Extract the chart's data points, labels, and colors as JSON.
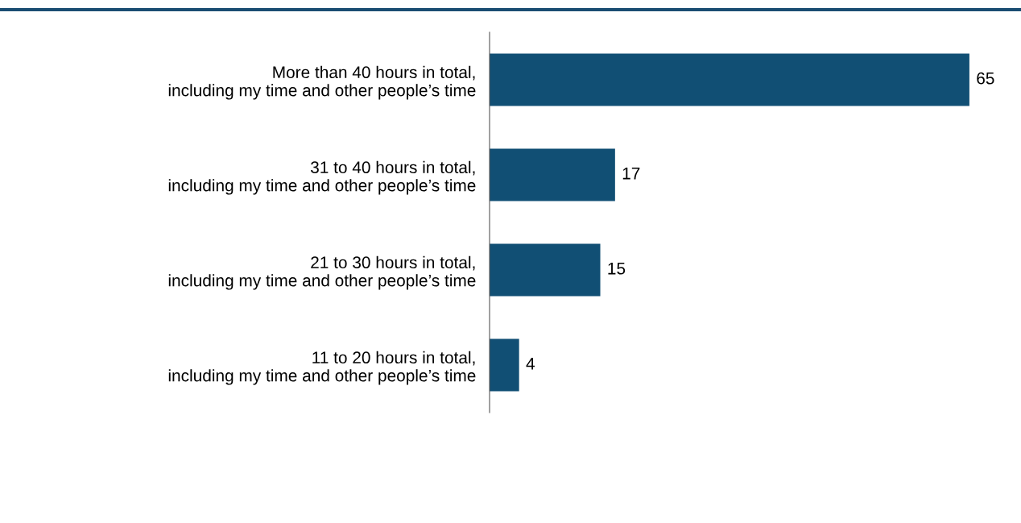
{
  "chart_data": {
    "type": "bar",
    "orientation": "horizontal",
    "categories": [
      "More than 40 hours in total,\nincluding my time and other people’s time",
      "31 to 40 hours in total,\nincluding my time and other people’s time",
      "21 to 30 hours in total,\nincluding my time and other people’s time",
      "11 to 20 hours in total,\nincluding my time and other people’s time"
    ],
    "values": [
      65,
      17,
      15,
      4
    ],
    "color": "#114f74",
    "data_labels": true,
    "grid": false,
    "legend": false
  }
}
